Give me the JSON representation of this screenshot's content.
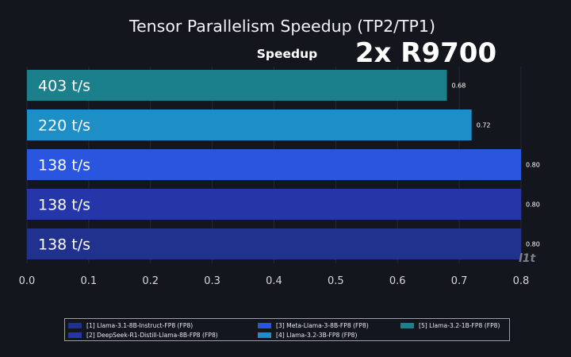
{
  "chart_data": {
    "type": "bar",
    "orientation": "horizontal",
    "title": "Tensor Parallelism Speedup (TP2/TP1)",
    "subtitle": "Speedup",
    "overlay_label": "2x R9700",
    "watermark": "l1t",
    "xlim": [
      0,
      0.8
    ],
    "x_ticks": [
      "0.0",
      "0.1",
      "0.2",
      "0.3",
      "0.4",
      "0.5",
      "0.6",
      "0.7",
      "0.8"
    ],
    "grid": true,
    "legend_position": "bottom",
    "bars": [
      {
        "series_index": 5,
        "value": 0.68,
        "value_label": "0.68",
        "throughput_label": "403 t/s",
        "color": "#1c7f8c"
      },
      {
        "series_index": 4,
        "value": 0.72,
        "value_label": "0.72",
        "throughput_label": "220 t/s",
        "color": "#1d8fc6"
      },
      {
        "series_index": 3,
        "value": 0.8,
        "value_label": "0.80",
        "throughput_label": "138 t/s",
        "color": "#2a55de"
      },
      {
        "series_index": 2,
        "value": 0.8,
        "value_label": "0.80",
        "throughput_label": "138 t/s",
        "color": "#2436a8"
      },
      {
        "series_index": 1,
        "value": 0.8,
        "value_label": "0.80",
        "throughput_label": "138 t/s",
        "color": "#21318e"
      }
    ],
    "legend": [
      {
        "label": "[1] Llama-3.1-8B-Instruct-FP8 (FP8)",
        "color": "#21318e"
      },
      {
        "label": "[3] Meta-Llama-3-8B-FP8 (FP8)",
        "color": "#2a55de"
      },
      {
        "label": "[5] Llama-3.2-1B-FP8 (FP8)",
        "color": "#1c7f8c"
      },
      {
        "label": "[2] DeepSeek-R1-Distill-Llama-8B-FP8 (FP8)",
        "color": "#2436a8"
      },
      {
        "label": "[4] Llama-3.2-3B-FP8 (FP8)",
        "color": "#1d8fc6"
      }
    ]
  }
}
